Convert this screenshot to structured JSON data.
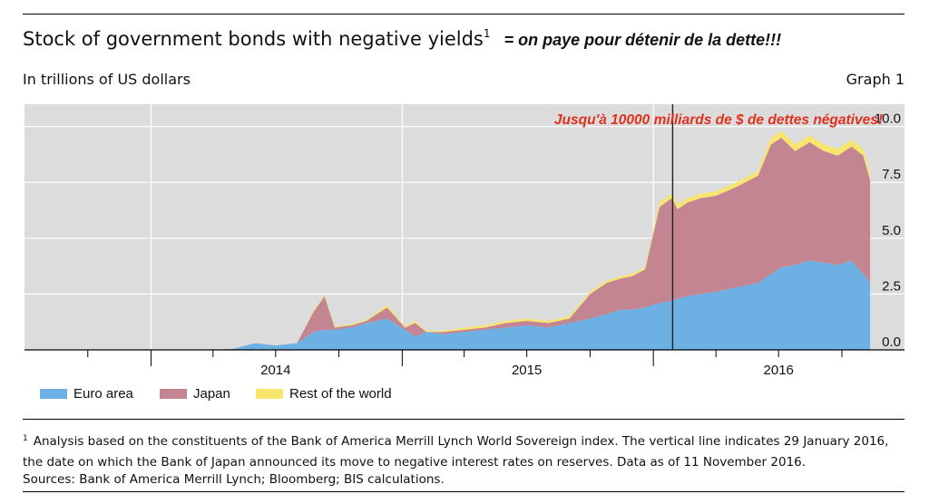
{
  "header": {
    "title": "Stock of government bonds with negative yields",
    "title_sup": "1",
    "annotation": "= on paye pour détenir de la dette!!!",
    "unit": "In trillions of US dollars",
    "graph_label": "Graph 1"
  },
  "chart_data": {
    "type": "area",
    "stacked": true,
    "x_tick_labels": [
      "2014",
      "2015",
      "2016"
    ],
    "y_tick_labels": [
      "0.0",
      "2.5",
      "5.0",
      "7.5",
      "10.0"
    ],
    "ylim": [
      0,
      11
    ],
    "xlim": [
      "2013-07-01",
      "2016-12-31"
    ],
    "grid": true,
    "legend_position": "bottom-left",
    "annotation": "Jusqu'à 10000 milliards de $ de dettes négatives!",
    "vertical_line": "2016-01-29",
    "colors": {
      "Euro area": "#6cb0e4",
      "Japan": "#c48593",
      "Rest of the world": "#f7e56e",
      "plot_bg": "#dcdcdc",
      "annotation": "#e0301e"
    },
    "x": [
      "2014-01-01",
      "2014-04-01",
      "2014-05-01",
      "2014-06-01",
      "2014-07-01",
      "2014-08-01",
      "2014-08-25",
      "2014-09-10",
      "2014-09-25",
      "2014-10-20",
      "2014-11-10",
      "2014-12-10",
      "2015-01-05",
      "2015-01-20",
      "2015-02-05",
      "2015-03-01",
      "2015-04-01",
      "2015-05-01",
      "2015-06-01",
      "2015-07-01",
      "2015-08-01",
      "2015-09-01",
      "2015-10-01",
      "2015-10-25",
      "2015-11-15",
      "2015-12-01",
      "2015-12-20",
      "2016-01-10",
      "2016-01-28",
      "2016-02-05",
      "2016-02-20",
      "2016-03-10",
      "2016-04-01",
      "2016-05-01",
      "2016-06-01",
      "2016-06-20",
      "2016-07-05",
      "2016-07-25",
      "2016-08-15",
      "2016-09-05",
      "2016-09-25",
      "2016-10-15",
      "2016-11-01",
      "2016-11-11"
    ],
    "series": [
      {
        "name": "Euro area",
        "values": [
          0,
          0,
          0.05,
          0.3,
          0.2,
          0.3,
          0.8,
          0.9,
          0.9,
          1.0,
          1.2,
          1.4,
          0.9,
          0.6,
          0.8,
          0.7,
          0.8,
          0.9,
          1.0,
          1.1,
          1.0,
          1.2,
          1.4,
          1.6,
          1.8,
          1.8,
          1.9,
          2.1,
          2.2,
          2.3,
          2.4,
          2.5,
          2.6,
          2.8,
          3.0,
          3.4,
          3.7,
          3.8,
          4.0,
          3.9,
          3.8,
          4.0,
          3.4,
          3.0
        ]
      },
      {
        "name": "Japan",
        "values": [
          0,
          0,
          0,
          0,
          0,
          0,
          0.9,
          1.5,
          0.1,
          0.1,
          0.1,
          0.5,
          0.1,
          0.6,
          0.0,
          0.1,
          0.1,
          0.1,
          0.2,
          0.2,
          0.2,
          0.2,
          1.1,
          1.4,
          1.4,
          1.5,
          1.7,
          4.3,
          4.6,
          4.0,
          4.2,
          4.3,
          4.3,
          4.5,
          4.8,
          5.8,
          5.8,
          5.1,
          5.3,
          5.0,
          4.9,
          5.1,
          5.3,
          4.6
        ]
      },
      {
        "name": "Rest of the world",
        "values": [
          0,
          0,
          0,
          0,
          0,
          0,
          0.05,
          0.05,
          0.05,
          0.05,
          0.05,
          0.1,
          0.05,
          0.1,
          0.05,
          0.05,
          0.1,
          0.1,
          0.1,
          0.1,
          0.1,
          0.1,
          0.1,
          0.1,
          0.1,
          0.1,
          0.1,
          0.2,
          0.2,
          0.2,
          0.2,
          0.2,
          0.2,
          0.2,
          0.2,
          0.3,
          0.3,
          0.3,
          0.3,
          0.3,
          0.3,
          0.3,
          0.3,
          0.3
        ]
      }
    ]
  },
  "footnote": {
    "sup": "1",
    "text": "Analysis based on the constituents of the Bank of America Merrill Lynch World Sovereign index. The vertical line indicates 29 January 2016, the date on which the Bank of Japan announced its move to negative interest rates on reserves. Data as of 11 November 2016.",
    "sources": "Sources: Bank of America Merrill Lynch; Bloomberg; BIS calculations."
  }
}
